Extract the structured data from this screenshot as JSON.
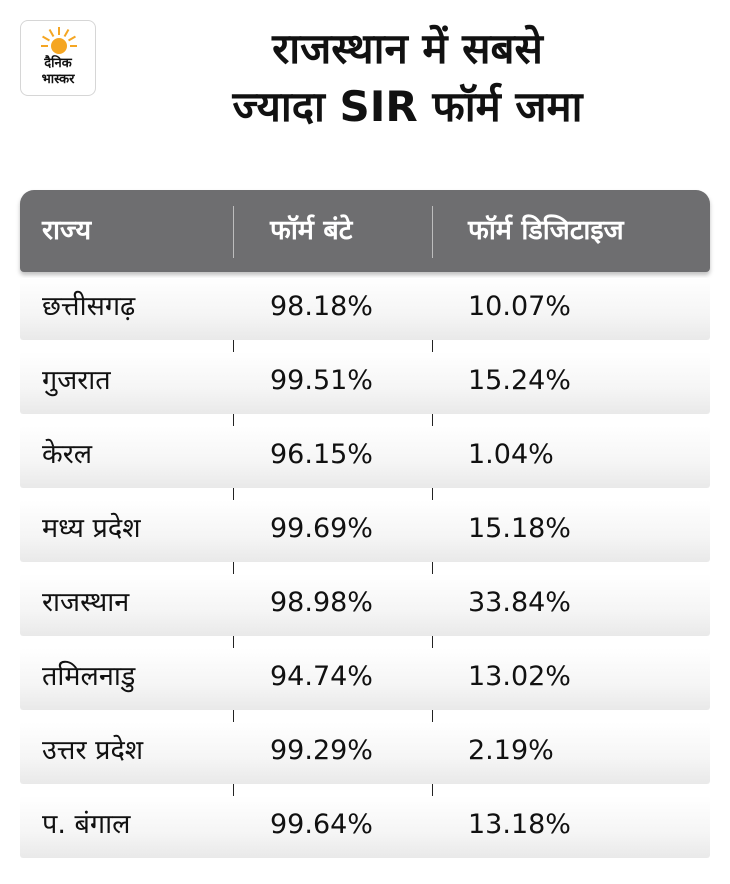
{
  "logo": {
    "line1": "दैनिक",
    "line2": "भास्कर",
    "sun_color": "#f5a623"
  },
  "title": {
    "line1": "राजस्थान में सबसे",
    "line2": "ज्यादा SIR फॉर्म जमा"
  },
  "chart_data": {
    "type": "table",
    "columns": [
      "राज्य",
      "फॉर्म बंटे",
      "फॉर्म डिजिटाइज"
    ],
    "rows": [
      [
        "छत्तीसगढ़",
        "98.18%",
        "10.07%"
      ],
      [
        "गुजरात",
        "99.51%",
        "15.24%"
      ],
      [
        "केरल",
        "96.15%",
        "1.04%"
      ],
      [
        "मध्य प्रदेश",
        "99.69%",
        "15.18%"
      ],
      [
        "राजस्थान",
        "98.98%",
        "33.84%"
      ],
      [
        "तमिलनाडु",
        "94.74%",
        "13.02%"
      ],
      [
        "उत्तर प्रदेश",
        "99.29%",
        "2.19%"
      ],
      [
        "प. बंगाल",
        "99.64%",
        "13.18%"
      ]
    ]
  },
  "colors": {
    "header_bg": "#6e6e70",
    "header_text": "#ffffff",
    "text": "#111111"
  }
}
